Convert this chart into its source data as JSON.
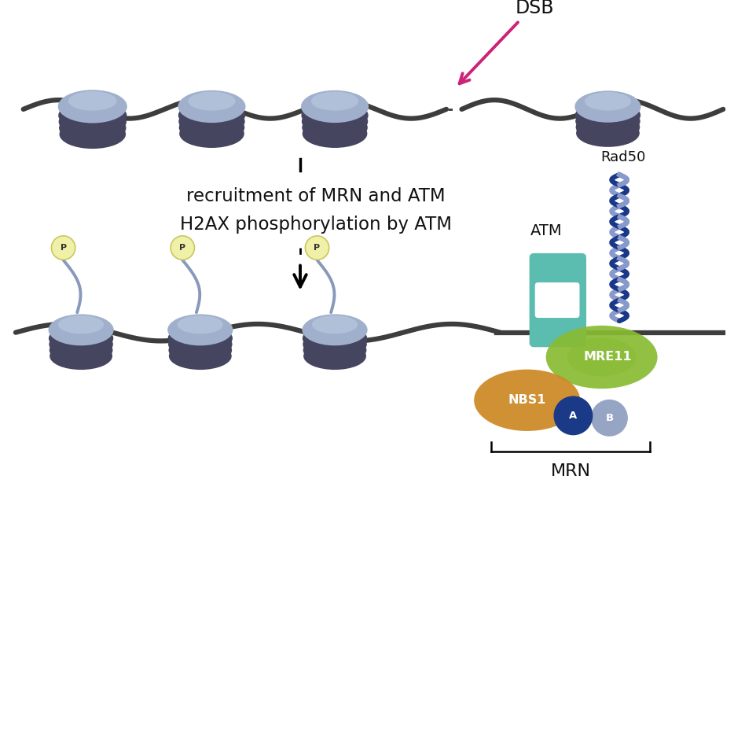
{
  "bg_color": "#ffffff",
  "dna_color": "#3d3d3d",
  "nucleosome_body_color": "#a0b0cc",
  "nucleosome_top_color": "#b8c8de",
  "nucleosome_ring_color": "#454560",
  "phospho_circle_color": "#f0f0a8",
  "phospho_edge_color": "#c8c860",
  "phospho_text_color": "#333333",
  "dsb_arrow_color": "#cc2277",
  "dsb_text_color": "#111111",
  "atm_color": "#5bbcb0",
  "mre11_color": "#88bb33",
  "nbs1_color": "#cc8822",
  "rad50_color_dark": "#1a3888",
  "rad50_color_light": "#8899cc",
  "subunit_a_color": "#1a3a88",
  "subunit_b_color": "#8899bb",
  "tail_color": "#8899bb",
  "text_color": "#111111",
  "arrow_text_line1": "recruitment of MRN and ATM",
  "arrow_text_line2": "H2AX phosphorylation by ATM",
  "label_ATM": "ATM",
  "label_MRE11": "MRE11",
  "label_NBS1": "NBS1",
  "label_Rad50": "Rad50",
  "label_MRN": "MRN",
  "label_DSB": "DSB",
  "label_A": "A",
  "label_B": "B",
  "label_P": "P"
}
